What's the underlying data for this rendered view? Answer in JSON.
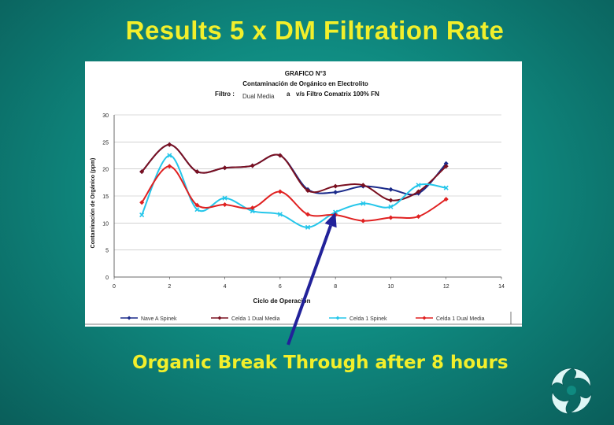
{
  "slide": {
    "title": "Results 5 x DM Filtration Rate",
    "caption": "Organic Break Through after 8 hours"
  },
  "colors": {
    "title": "#f2ef2b",
    "navy": "#1a2a8a",
    "maroon": "#7a1020",
    "cyan": "#25c6ea",
    "red": "#e02020",
    "arrow": "#22229a"
  },
  "logo": {
    "icon": "swirl-logo-icon"
  },
  "chart_data": {
    "type": "line",
    "title_line1": "GRAFICO N°3",
    "title_line2": "Contaminación de Orgánico en Electrolito",
    "title_line3_a": "Filtro :",
    "title_line3_b": "Dual Media",
    "title_line3_c": "a",
    "title_line3_d": "v/s  Filtro Comatrix 100% FN",
    "xlabel": "Ciclo de Operación",
    "ylabel": "Contaminación de Orgánico (ppm)",
    "xlim": [
      0,
      14
    ],
    "ylim": [
      0,
      30
    ],
    "x_ticks": [
      "0",
      "2",
      "4",
      "6",
      "8",
      "10",
      "12",
      "14"
    ],
    "x_tick_values": [
      0,
      2,
      4,
      6,
      8,
      10,
      12,
      14
    ],
    "y_ticks": [
      "0",
      "5",
      "10",
      "15",
      "20",
      "25",
      "30"
    ],
    "y_tick_values": [
      0,
      5,
      10,
      15,
      20,
      25,
      30
    ],
    "grid": "horizontal",
    "legend_position": "bottom",
    "series": [
      {
        "name": "Nave A  Spinek",
        "color": "#1a2a8a",
        "marker": "diamond",
        "x": [
          1,
          2,
          3,
          4,
          5,
          6,
          7,
          8,
          9,
          10,
          11,
          12
        ],
        "values": [
          19.5,
          24.5,
          19.5,
          20.2,
          20.6,
          22.5,
          16.2,
          15.7,
          16.8,
          16.2,
          15.5,
          21.0
        ]
      },
      {
        "name": "Celda 1  Dual Media",
        "color": "#7a1020",
        "marker": "diamond",
        "x": [
          1,
          2,
          3,
          4,
          5,
          6,
          7,
          8,
          9,
          10,
          11,
          12
        ],
        "values": [
          19.5,
          24.5,
          19.5,
          20.2,
          20.6,
          22.5,
          16.0,
          16.8,
          17.0,
          14.2,
          15.8,
          20.5
        ]
      },
      {
        "name": "Celda 1  Spinek",
        "color": "#25c6ea",
        "marker": "x",
        "x": [
          1,
          2,
          3,
          4,
          5,
          6,
          7,
          8,
          9,
          10,
          11,
          12
        ],
        "values": [
          11.5,
          22.5,
          12.5,
          14.6,
          12.2,
          11.6,
          9.2,
          12.0,
          13.6,
          13.0,
          17.0,
          16.5
        ]
      },
      {
        "name": "Celda 1  Dual Media",
        "color": "#e02020",
        "marker": "diamond",
        "x": [
          1,
          2,
          3,
          4,
          5,
          6,
          7,
          8,
          9,
          10,
          11,
          12
        ],
        "values": [
          13.8,
          20.5,
          13.3,
          13.4,
          12.8,
          15.8,
          11.6,
          11.5,
          10.4,
          11.0,
          11.2,
          14.4
        ]
      }
    ],
    "annotation": {
      "text": "Organic Break Through after 8 hours",
      "x": 8,
      "y": 12
    }
  }
}
